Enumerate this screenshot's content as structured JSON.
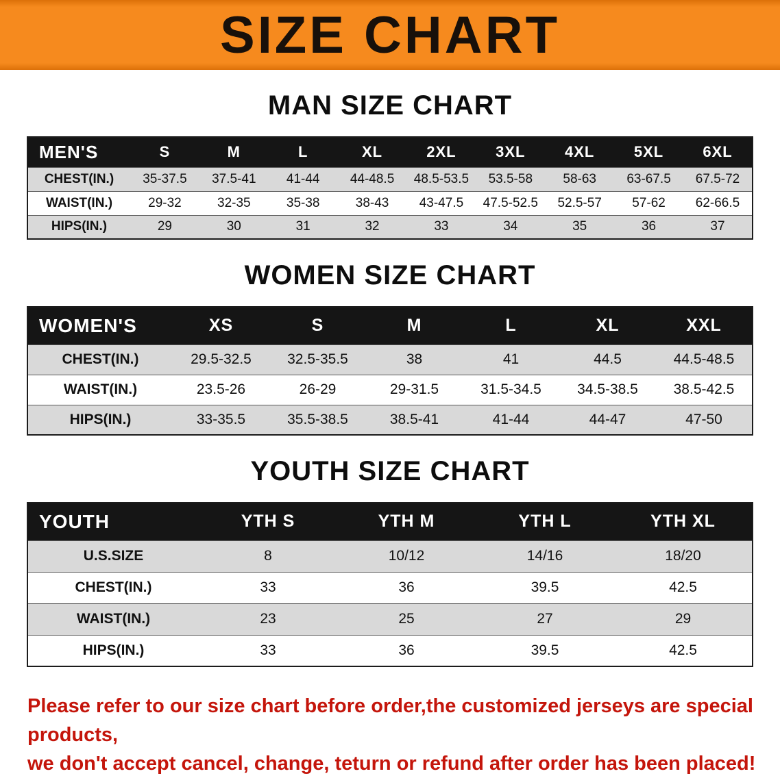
{
  "banner": {
    "title": "SIZE CHART"
  },
  "colors": {
    "banner_bg": "#f68a1e",
    "table_header_bg": "#151515",
    "table_header_text": "#ffffff",
    "row_stripe": "#d9d9d9",
    "notice_red": "#c4150b",
    "heading_text": "#0d0d0d"
  },
  "sections": [
    {
      "heading": "MAN SIZE CHART",
      "table": {
        "header": [
          "MEN'S",
          "S",
          "M",
          "L",
          "XL",
          "2XL",
          "3XL",
          "4XL",
          "5XL",
          "6XL"
        ],
        "rows": [
          [
            "CHEST(IN.)",
            "35-37.5",
            "37.5-41",
            "41-44",
            "44-48.5",
            "48.5-53.5",
            "53.5-58",
            "58-63",
            "63-67.5",
            "67.5-72"
          ],
          [
            "WAIST(IN.)",
            "29-32",
            "32-35",
            "35-38",
            "38-43",
            "43-47.5",
            "47.5-52.5",
            "52.5-57",
            "57-62",
            "62-66.5"
          ],
          [
            "HIPS(IN.)",
            "29",
            "30",
            "31",
            "32",
            "33",
            "34",
            "35",
            "36",
            "37"
          ]
        ]
      }
    },
    {
      "heading": "WOMEN SIZE CHART",
      "table": {
        "header": [
          "WOMEN'S",
          "XS",
          "S",
          "M",
          "L",
          "XL",
          "XXL"
        ],
        "rows": [
          [
            "CHEST(IN.)",
            "29.5-32.5",
            "32.5-35.5",
            "38",
            "41",
            "44.5",
            "44.5-48.5"
          ],
          [
            "WAIST(IN.)",
            "23.5-26",
            "26-29",
            "29-31.5",
            "31.5-34.5",
            "34.5-38.5",
            "38.5-42.5"
          ],
          [
            "HIPS(IN.)",
            "33-35.5",
            "35.5-38.5",
            "38.5-41",
            "41-44",
            "44-47",
            "47-50"
          ]
        ]
      }
    },
    {
      "heading": "YOUTH SIZE CHART",
      "table": {
        "header": [
          "YOUTH",
          "YTH S",
          "YTH M",
          "YTH L",
          "YTH XL"
        ],
        "rows": [
          [
            "U.S.SIZE",
            "8",
            "10/12",
            "14/16",
            "18/20"
          ],
          [
            "CHEST(IN.)",
            "33",
            "36",
            "39.5",
            "42.5"
          ],
          [
            "WAIST(IN.)",
            "23",
            "25",
            "27",
            "29"
          ],
          [
            "HIPS(IN.)",
            "33",
            "36",
            "39.5",
            "42.5"
          ]
        ]
      }
    }
  ],
  "footer": {
    "line1": "Please refer to our size chart before order,the customized jerseys are special products,",
    "line2": "we don't accept cancel, change, teturn or refund after order has been placed!"
  },
  "chart_data": [
    {
      "type": "table",
      "title": "MAN SIZE CHART",
      "columns": [
        "MEN'S",
        "S",
        "M",
        "L",
        "XL",
        "2XL",
        "3XL",
        "4XL",
        "5XL",
        "6XL"
      ],
      "rows": [
        [
          "CHEST(IN.)",
          "35-37.5",
          "37.5-41",
          "41-44",
          "44-48.5",
          "48.5-53.5",
          "53.5-58",
          "58-63",
          "63-67.5",
          "67.5-72"
        ],
        [
          "WAIST(IN.)",
          "29-32",
          "32-35",
          "35-38",
          "38-43",
          "43-47.5",
          "47.5-52.5",
          "52.5-57",
          "57-62",
          "62-66.5"
        ],
        [
          "HIPS(IN.)",
          "29",
          "30",
          "31",
          "32",
          "33",
          "34",
          "35",
          "36",
          "37"
        ]
      ]
    },
    {
      "type": "table",
      "title": "WOMEN SIZE CHART",
      "columns": [
        "WOMEN'S",
        "XS",
        "S",
        "M",
        "L",
        "XL",
        "XXL"
      ],
      "rows": [
        [
          "CHEST(IN.)",
          "29.5-32.5",
          "32.5-35.5",
          "38",
          "41",
          "44.5",
          "44.5-48.5"
        ],
        [
          "WAIST(IN.)",
          "23.5-26",
          "26-29",
          "29-31.5",
          "31.5-34.5",
          "34.5-38.5",
          "38.5-42.5"
        ],
        [
          "HIPS(IN.)",
          "33-35.5",
          "35.5-38.5",
          "38.5-41",
          "41-44",
          "44-47",
          "47-50"
        ]
      ]
    },
    {
      "type": "table",
      "title": "YOUTH SIZE CHART",
      "columns": [
        "YOUTH",
        "YTH S",
        "YTH M",
        "YTH L",
        "YTH XL"
      ],
      "rows": [
        [
          "U.S.SIZE",
          "8",
          "10/12",
          "14/16",
          "18/20"
        ],
        [
          "CHEST(IN.)",
          "33",
          "36",
          "39.5",
          "42.5"
        ],
        [
          "WAIST(IN.)",
          "23",
          "25",
          "27",
          "29"
        ],
        [
          "HIPS(IN.)",
          "33",
          "36",
          "39.5",
          "42.5"
        ]
      ]
    }
  ]
}
